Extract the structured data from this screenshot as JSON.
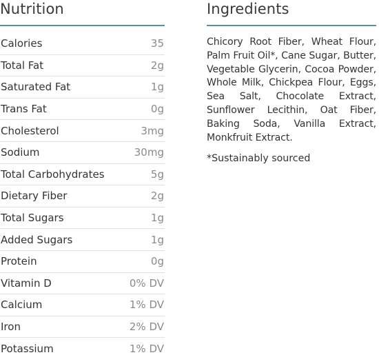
{
  "nutrition": {
    "title": "Nutrition",
    "accent_color": "#5b8ea8",
    "items": [
      {
        "label": "Calories",
        "value": "35"
      },
      {
        "label": "Total Fat",
        "value": "2g"
      },
      {
        "label": "Saturated Fat",
        "value": "1g"
      },
      {
        "label": "Trans Fat",
        "value": "0g"
      },
      {
        "label": "Cholesterol",
        "value": "3mg"
      },
      {
        "label": "Sodium",
        "value": "30mg"
      },
      {
        "label": "Total Carbohydrates",
        "value": "5g"
      },
      {
        "label": "Dietary Fiber",
        "value": "2g"
      },
      {
        "label": "Total Sugars",
        "value": "1g"
      },
      {
        "label": "Added Sugars",
        "value": "1g"
      },
      {
        "label": "Protein",
        "value": "0g"
      },
      {
        "label": "Vitamin D",
        "value": "0% DV"
      },
      {
        "label": "Calcium",
        "value": "1% DV"
      },
      {
        "label": "Iron",
        "value": "2% DV"
      },
      {
        "label": "Potassium",
        "value": "1% DV"
      }
    ]
  },
  "ingredients": {
    "title": "Ingredients",
    "text": "Chicory Root Fiber, Wheat Flour, Palm Fruit Oil*, Cane Sugar, Butter, Vegetable Glycerin, Cocoa Powder, Whole Milk, Chickpea Flour, Eggs, Sea Salt, Chocolate Extract, Sunflower Lecithin, Oat Fiber, Baking Soda, Vanilla Extract, Monkfruit Extract.",
    "note": "*Sustainably sourced"
  }
}
